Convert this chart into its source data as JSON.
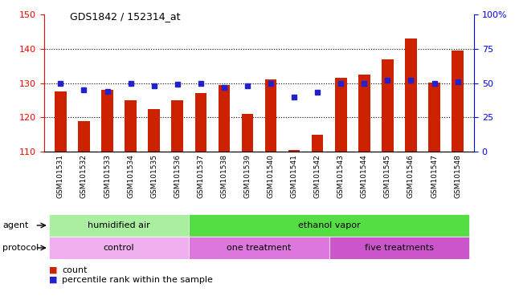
{
  "title": "GDS1842 / 152314_at",
  "samples": [
    "GSM101531",
    "GSM101532",
    "GSM101533",
    "GSM101534",
    "GSM101535",
    "GSM101536",
    "GSM101537",
    "GSM101538",
    "GSM101539",
    "GSM101540",
    "GSM101541",
    "GSM101542",
    "GSM101543",
    "GSM101544",
    "GSM101545",
    "GSM101546",
    "GSM101547",
    "GSM101548"
  ],
  "count_values": [
    127.5,
    119.0,
    128.0,
    125.0,
    122.5,
    125.0,
    127.0,
    129.5,
    121.0,
    131.0,
    110.5,
    115.0,
    131.5,
    132.5,
    137.0,
    143.0,
    130.0,
    139.5
  ],
  "percentile_values": [
    50,
    45,
    44,
    50,
    48,
    49,
    50,
    47,
    48,
    50,
    40,
    43,
    50,
    50,
    52,
    52,
    50,
    51
  ],
  "ylim_left": [
    110,
    150
  ],
  "ylim_right": [
    0,
    100
  ],
  "bar_color": "#cc2200",
  "dot_color": "#2222cc",
  "agent_groups": [
    {
      "label": "humidified air",
      "start": 0,
      "end": 6,
      "color": "#aaeea0"
    },
    {
      "label": "ethanol vapor",
      "start": 6,
      "end": 18,
      "color": "#55dd44"
    }
  ],
  "protocol_groups": [
    {
      "label": "control",
      "start": 0,
      "end": 6,
      "color": "#f0b0f0"
    },
    {
      "label": "one treatment",
      "start": 6,
      "end": 12,
      "color": "#dd77dd"
    },
    {
      "label": "five treatments",
      "start": 12,
      "end": 18,
      "color": "#cc55cc"
    }
  ],
  "grid_yticks_left": [
    110,
    120,
    130,
    140,
    150
  ],
  "grid_yticks_right": [
    0,
    25,
    50,
    75,
    100
  ],
  "bar_width": 0.5,
  "plot_bg": "#ffffff",
  "fig_bg": "#ffffff"
}
